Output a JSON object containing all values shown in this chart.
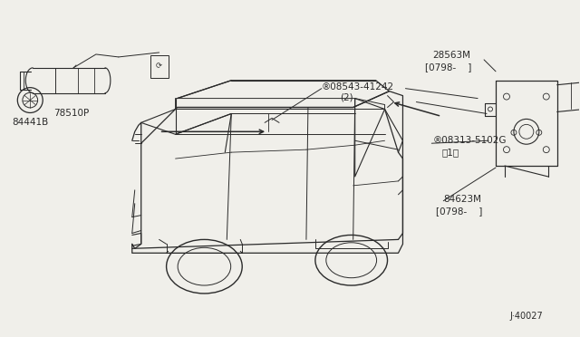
{
  "bg_color": "#f0efea",
  "line_color": "#2a2a2a",
  "text_color": "#2a2a2a",
  "fig_width": 6.4,
  "fig_height": 3.72,
  "dpi": 100,
  "diagram_id": "J·40027",
  "label_84441B": "84441B",
  "label_78510P": "78510P",
  "label_28563M": "28563M",
  "label_28563M_sub": "[0798-    ]",
  "label_08543": "®08543-41242",
  "label_08543_sub": "(2)",
  "label_08313": "®08313-5102G",
  "label_08313_sub": "（1）",
  "label_84623M": "84623M",
  "label_84623M_sub": "[0798-    ]"
}
